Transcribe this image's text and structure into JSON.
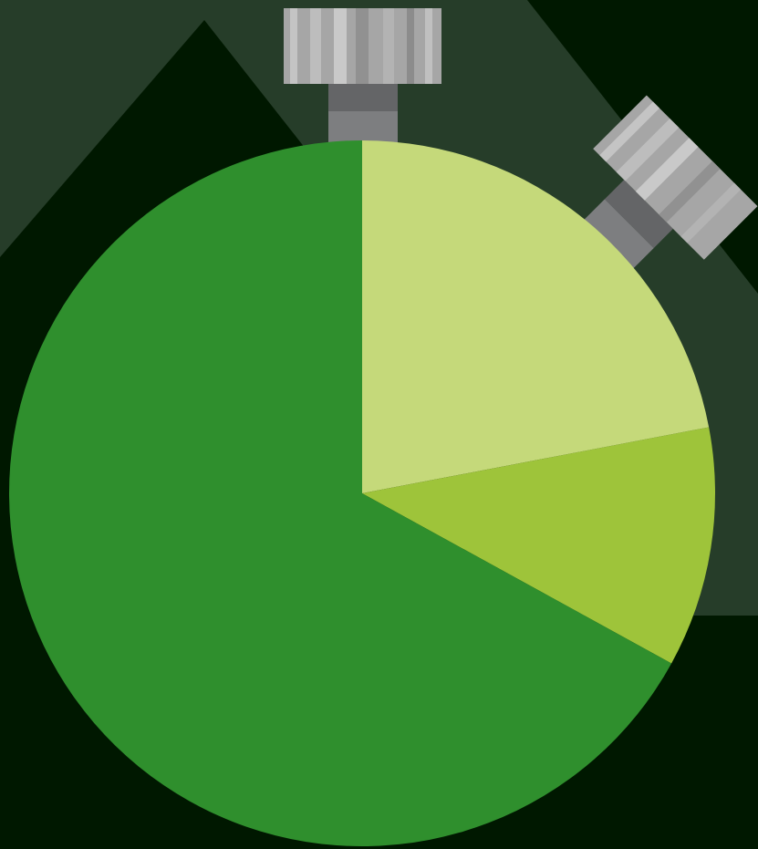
{
  "chart_data": {
    "type": "pie",
    "values": [
      22,
      11,
      67
    ],
    "colors": [
      "#c5d97a",
      "#9ec43a",
      "#2f8f2d"
    ]
  }
}
